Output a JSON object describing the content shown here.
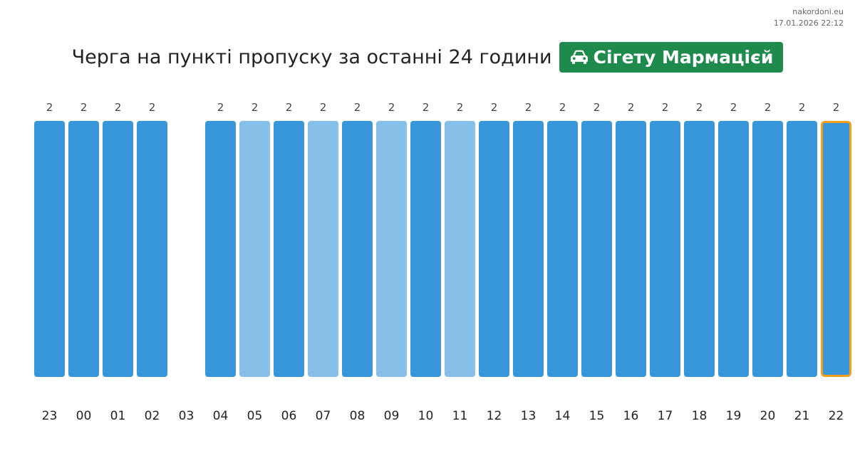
{
  "site": {
    "name": "nakordoni.eu",
    "timestamp": "17.01.2026 22:12"
  },
  "header": {
    "title": "Черга на пункті пропуску за останні 24 години",
    "checkpoint": "Сігету Мармацієй",
    "checkpoint_icon": "car-icon",
    "badge_color": "#1e8a4c"
  },
  "colors": {
    "bar_dark": "#3897db",
    "bar_light": "#86c0e8",
    "highlight_border": "#f29f1c"
  },
  "chart_data": {
    "type": "bar",
    "title": "",
    "xlabel": "",
    "ylabel": "",
    "grid": false,
    "categories": [
      "23",
      "00",
      "01",
      "02",
      "03",
      "04",
      "05",
      "06",
      "07",
      "08",
      "09",
      "10",
      "11",
      "12",
      "13",
      "14",
      "15",
      "16",
      "17",
      "18",
      "19",
      "20",
      "21",
      "22"
    ],
    "values": [
      2,
      2,
      2,
      2,
      null,
      2,
      2,
      2,
      2,
      2,
      2,
      2,
      2,
      2,
      2,
      2,
      2,
      2,
      2,
      2,
      2,
      2,
      2,
      2
    ],
    "shade": [
      "dark",
      "dark",
      "dark",
      "dark",
      "none",
      "dark",
      "light",
      "dark",
      "light",
      "dark",
      "light",
      "dark",
      "light",
      "dark",
      "dark",
      "dark",
      "dark",
      "dark",
      "dark",
      "dark",
      "dark",
      "dark",
      "dark",
      "dark"
    ],
    "highlighted": "22",
    "ylim": [
      0,
      2
    ]
  }
}
